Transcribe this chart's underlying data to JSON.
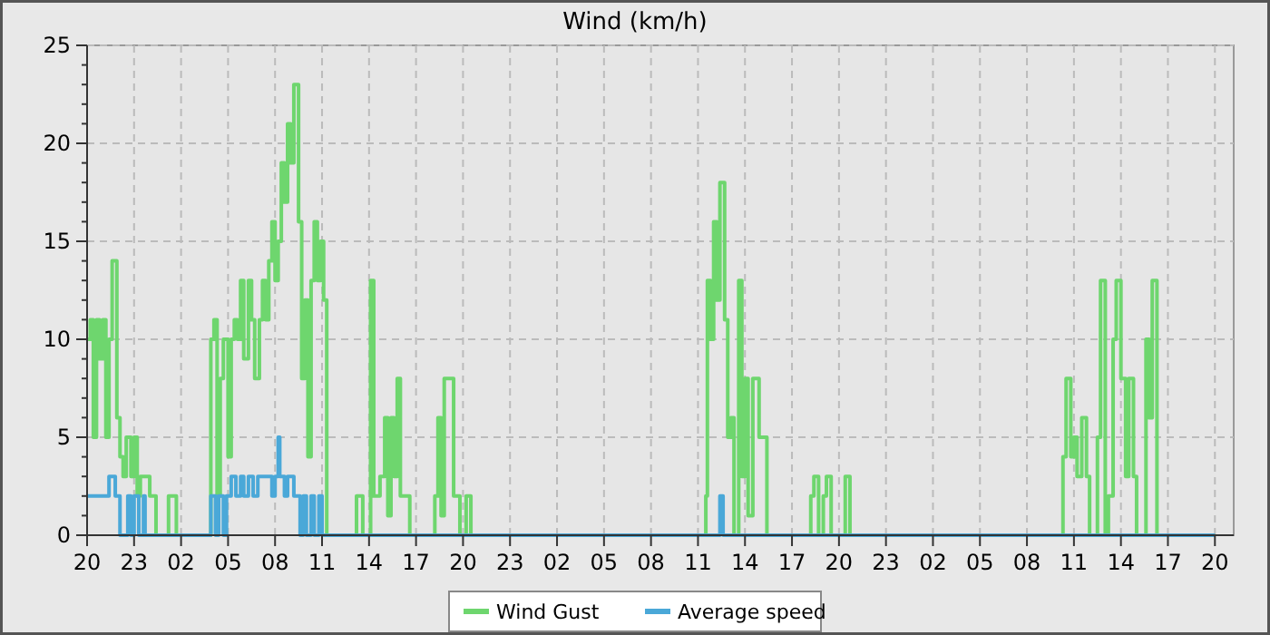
{
  "chart_data": {
    "type": "step",
    "title": "Wind (km/h)",
    "xlim": [
      "--01-01T20:00",
      "--01-04T21:12"
    ],
    "ylim": [
      0,
      25
    ],
    "xticks": [
      {
        "value": "--01-01T20:00",
        "label": "20"
      },
      {
        "value": "--01-01T23:00",
        "label": "23"
      },
      {
        "value": "--01-02T02:00",
        "label": "02"
      },
      {
        "value": "--01-02T05:00",
        "label": "05"
      },
      {
        "value": "--01-02T08:00",
        "label": "08"
      },
      {
        "value": "--01-02T11:00",
        "label": "11"
      },
      {
        "value": "--01-02T14:00",
        "label": "14"
      },
      {
        "value": "--01-02T17:00",
        "label": "17"
      },
      {
        "value": "--01-02T20:00",
        "label": "20"
      },
      {
        "value": "--01-02T23:00",
        "label": "23"
      },
      {
        "value": "--01-03T02:00",
        "label": "02"
      },
      {
        "value": "--01-03T05:00",
        "label": "05"
      },
      {
        "value": "--01-03T08:00",
        "label": "08"
      },
      {
        "value": "--01-03T11:00",
        "label": "11"
      },
      {
        "value": "--01-03T14:00",
        "label": "14"
      },
      {
        "value": "--01-03T17:00",
        "label": "17"
      },
      {
        "value": "--01-03T20:00",
        "label": "20"
      },
      {
        "value": "--01-03T23:00",
        "label": "23"
      },
      {
        "value": "--01-04T02:00",
        "label": "02"
      },
      {
        "value": "--01-04T05:00",
        "label": "05"
      },
      {
        "value": "--01-04T08:00",
        "label": "08"
      },
      {
        "value": "--01-04T11:00",
        "label": "11"
      },
      {
        "value": "--01-04T14:00",
        "label": "14"
      },
      {
        "value": "--01-04T17:00",
        "label": "17"
      },
      {
        "value": "--01-04T20:00",
        "label": "20"
      }
    ],
    "yticks": [
      0,
      5,
      10,
      15,
      20,
      25
    ],
    "grid": true,
    "legend": "bottom",
    "line_style": "solid",
    "series": [
      {
        "name": "Wind Gust",
        "color": "#6ed66e",
        "x": [
          "--01-01T20:00",
          "--01-01T20:12",
          "--01-01T20:24",
          "--01-01T20:36",
          "--01-01T20:48",
          "--01-01T21:00",
          "--01-01T21:12",
          "--01-01T21:24",
          "--01-01T21:36",
          "--01-01T21:54",
          "--01-01T22:06",
          "--01-01T22:18",
          "--01-01T22:30",
          "--01-01T22:48",
          "--01-01T23:00",
          "--01-01T23:12",
          "--01-01T23:24",
          "--01-02T00:00",
          "--01-02T00:24",
          "--01-02T01:12",
          "--01-02T01:42",
          "--01-02T03:54",
          "--01-02T04:06",
          "--01-02T04:18",
          "--01-02T04:30",
          "--01-02T04:42",
          "--01-02T05:00",
          "--01-02T05:12",
          "--01-02T05:24",
          "--01-02T05:36",
          "--01-02T05:48",
          "--01-02T06:00",
          "--01-02T06:18",
          "--01-02T06:30",
          "--01-02T06:42",
          "--01-02T07:00",
          "--01-02T07:12",
          "--01-02T07:24",
          "--01-02T07:36",
          "--01-02T07:48",
          "--01-02T08:00",
          "--01-02T08:12",
          "--01-02T08:24",
          "--01-02T08:36",
          "--01-02T08:48",
          "--01-02T09:00",
          "--01-02T09:12",
          "--01-02T09:30",
          "--01-02T09:42",
          "--01-02T09:54",
          "--01-02T10:06",
          "--01-02T10:18",
          "--01-02T10:30",
          "--01-02T10:42",
          "--01-02T10:54",
          "--01-02T11:06",
          "--01-02T11:18",
          "--01-02T13:12",
          "--01-02T13:36",
          "--01-02T14:06",
          "--01-02T14:18",
          "--01-02T14:42",
          "--01-02T15:00",
          "--01-02T15:12",
          "--01-02T15:24",
          "--01-02T15:36",
          "--01-02T15:48",
          "--01-02T16:00",
          "--01-02T16:36",
          "--01-02T18:12",
          "--01-02T18:24",
          "--01-02T18:36",
          "--01-02T18:48",
          "--01-02T19:24",
          "--01-02T19:48",
          "--01-02T20:12",
          "--01-02T20:30",
          "--01-03T11:30",
          "--01-03T11:36",
          "--01-03T11:48",
          "--01-03T12:00",
          "--01-03T12:12",
          "--01-03T12:24",
          "--01-03T12:42",
          "--01-03T12:54",
          "--01-03T13:06",
          "--01-03T13:18",
          "--01-03T13:36",
          "--01-03T13:48",
          "--01-03T14:00",
          "--01-03T14:12",
          "--01-03T14:30",
          "--01-03T14:54",
          "--01-03T15:24",
          "--01-03T18:12",
          "--01-03T18:24",
          "--01-03T18:42",
          "--01-03T19:00",
          "--01-03T19:12",
          "--01-03T19:30",
          "--01-03T20:24",
          "--01-03T20:42",
          "--01-04T10:18",
          "--01-04T10:30",
          "--01-04T10:48",
          "--01-04T11:00",
          "--01-04T11:12",
          "--01-04T11:30",
          "--01-04T11:48",
          "--01-04T12:00",
          "--01-04T12:30",
          "--01-04T12:42",
          "--01-04T13:00",
          "--01-04T13:12",
          "--01-04T13:30",
          "--01-04T13:42",
          "--01-04T14:00",
          "--01-04T14:18",
          "--01-04T14:30",
          "--01-04T14:48",
          "--01-04T15:00",
          "--01-04T15:36",
          "--01-04T15:48",
          "--01-04T16:00",
          "--01-04T16:18",
          "--01-04T20:00"
        ],
        "values": [
          10,
          11,
          5,
          11,
          9,
          11,
          5,
          10,
          14,
          6,
          4,
          3,
          5,
          3,
          5,
          2,
          3,
          2,
          0,
          2,
          0,
          10,
          11,
          2,
          8,
          10,
          4,
          10,
          11,
          10,
          13,
          9,
          13,
          11,
          8,
          11,
          13,
          11,
          14,
          16,
          13,
          15,
          19,
          17,
          21,
          19,
          23,
          16,
          8,
          12,
          4,
          13,
          16,
          13,
          15,
          12,
          0,
          2,
          0,
          13,
          2,
          3,
          6,
          1,
          6,
          3,
          8,
          2,
          0,
          2,
          6,
          1,
          8,
          2,
          0,
          2,
          0,
          2,
          13,
          10,
          16,
          12,
          18,
          11,
          5,
          6,
          0,
          13,
          3,
          8,
          1,
          8,
          5,
          0,
          2,
          3,
          0,
          2,
          3,
          0,
          3,
          0,
          4,
          8,
          4,
          5,
          3,
          6,
          3,
          0,
          5,
          13,
          0,
          2,
          10,
          13,
          8,
          3,
          8,
          3,
          0,
          10,
          6,
          13,
          0,
          0
        ]
      },
      {
        "name": "Average speed",
        "color": "#4aa8d8",
        "x": [
          "--01-01T20:00",
          "--01-01T21:24",
          "--01-01T21:48",
          "--01-01T22:06",
          "--01-01T22:36",
          "--01-01T22:48",
          "--01-01T23:00",
          "--01-01T23:18",
          "--01-01T23:36",
          "--01-01T23:42",
          "--01-02T03:54",
          "--01-02T04:12",
          "--01-02T04:24",
          "--01-02T04:42",
          "--01-02T04:54",
          "--01-02T05:12",
          "--01-02T05:30",
          "--01-02T05:48",
          "--01-02T06:00",
          "--01-02T06:18",
          "--01-02T06:36",
          "--01-02T06:54",
          "--01-02T07:30",
          "--01-02T07:48",
          "--01-02T08:00",
          "--01-02T08:12",
          "--01-02T08:18",
          "--01-02T08:36",
          "--01-02T08:48",
          "--01-02T09:12",
          "--01-02T09:36",
          "--01-02T09:48",
          "--01-02T10:00",
          "--01-02T10:18",
          "--01-02T10:30",
          "--01-02T10:48",
          "--01-02T11:00",
          "--01-03T12:24",
          "--01-03T12:36",
          "--01-04T20:00"
        ],
        "values": [
          2,
          3,
          2,
          0,
          2,
          0,
          2,
          0,
          2,
          0,
          2,
          0,
          2,
          0,
          2,
          3,
          2,
          3,
          2,
          3,
          2,
          3,
          3,
          2,
          3,
          5,
          3,
          2,
          3,
          2,
          0,
          2,
          0,
          2,
          0,
          2,
          0,
          2,
          0,
          0
        ]
      }
    ]
  }
}
